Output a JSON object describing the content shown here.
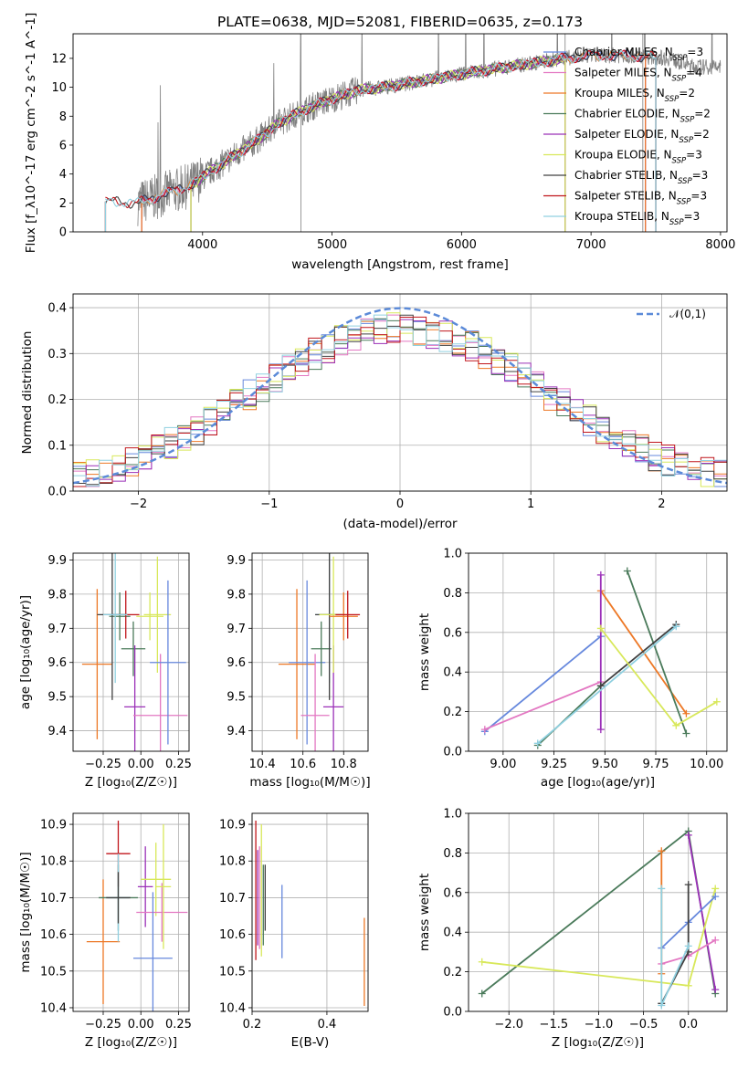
{
  "title": "PLATE=0638, MJD=52081, FIBERID=0635, z=0.173",
  "chart_data": [
    {
      "id": "spectrum",
      "type": "line",
      "xlabel": "wavelength [Angstrom, rest frame]",
      "ylabel": "Flux [f_λ10^-17 erg cm^-2 s^-1 A^-1]",
      "xlim": [
        3000,
        8050
      ],
      "ylim": [
        0,
        13.7
      ],
      "xticks": [
        4000,
        5000,
        6000,
        7000,
        8000
      ],
      "yticks": [
        0,
        2,
        4,
        6,
        8,
        10,
        12
      ],
      "grid": false,
      "legend_position": "top-right",
      "observed_color": "#808080",
      "observed_range": [
        3500,
        8000
      ],
      "model_trend": {
        "x": [
          3250,
          3500,
          3700,
          3800,
          3900,
          4000,
          4200,
          4400,
          4600,
          4800,
          5000,
          5200,
          5400,
          5600,
          5800,
          6000,
          6200,
          6500,
          6800,
          7000,
          7300,
          7600,
          7800
        ],
        "y": [
          2.1,
          2.0,
          2.6,
          2.9,
          3.2,
          3.8,
          5.0,
          6.2,
          7.6,
          8.5,
          9.2,
          9.8,
          10.0,
          10.3,
          10.6,
          10.9,
          11.2,
          11.6,
          12.0,
          12.2,
          12.2,
          12.0,
          11.4
        ]
      },
      "series": [
        {
          "name": "Chabrier MILES",
          "nssp": "3",
          "color": "#6688dd",
          "start": 3530,
          "end": 7420
        },
        {
          "name": "Salpeter MILES",
          "nssp": "4",
          "color": "#e377c2",
          "start": 3530,
          "end": 7420
        },
        {
          "name": "Kroupa MILES",
          "nssp": "2",
          "color": "#ed7826",
          "start": 3530,
          "end": 7420
        },
        {
          "name": "Chabrier ELODIE",
          "nssp": "2",
          "color": "#4a7a5a",
          "start": 3910,
          "end": 6800
        },
        {
          "name": "Salpeter ELODIE",
          "nssp": "2",
          "color": "#9b30b8",
          "start": 3910,
          "end": 6800
        },
        {
          "name": "Kroupa ELODIE",
          "nssp": "3",
          "color": "#d8e85a",
          "start": 3910,
          "end": 6800
        },
        {
          "name": "Chabrier STELIB",
          "nssp": "3",
          "color": "#404040",
          "start": 3250,
          "end": 7500
        },
        {
          "name": "Salpeter STELIB",
          "nssp": "3",
          "color": "#c0151b",
          "start": 3250,
          "end": 7500
        },
        {
          "name": "Kroupa STELIB",
          "nssp": "3",
          "color": "#90d0e0",
          "start": 3250,
          "end": 7500
        }
      ]
    },
    {
      "id": "residuals",
      "type": "line",
      "xlabel": "(data-model)/error",
      "ylabel": "Normed distribution",
      "xlim": [
        -2.5,
        2.5
      ],
      "ylim": [
        0,
        0.43
      ],
      "xticks": [
        -2,
        -1,
        0,
        1,
        2
      ],
      "yticks": [
        0.0,
        0.1,
        0.2,
        0.3,
        0.4
      ],
      "grid": true,
      "legend_position": "top-right",
      "reference": {
        "name": "𝒩(0,1)",
        "color": "#5b8ad8",
        "mean": 0,
        "sd": 1
      },
      "histogram": {
        "bins": 50,
        "range": [
          -2.5,
          2.5
        ],
        "sd": 1.12,
        "peak": 0.355
      }
    },
    {
      "id": "age_vs_Z",
      "type": "scatter",
      "xlabel": "Z [log₁₀(Z/Z☉)]",
      "ylabel": "age  [log₁₀(age/yr)]",
      "xlim": [
        -0.45,
        0.32
      ],
      "ylim": [
        9.34,
        9.92
      ],
      "xticks": [
        -0.25,
        0.0,
        0.25
      ],
      "yticks": [
        9.4,
        9.5,
        9.6,
        9.7,
        9.8,
        9.9
      ],
      "grid": true,
      "points": [
        {
          "x": -0.29,
          "xerr": 0.1,
          "y": 9.595,
          "yerr": 0.22,
          "color": "#ed7826"
        },
        {
          "x": -0.14,
          "xerr": 0.07,
          "y": 9.735,
          "yerr": 0.07,
          "color": "#4a7a5a"
        },
        {
          "x": -0.1,
          "xerr": 0.09,
          "y": 9.74,
          "yerr": 0.07,
          "color": "#c0151b"
        },
        {
          "x": -0.19,
          "xerr": 0.1,
          "y": 9.74,
          "yerr": 0.25,
          "color": "#404040"
        },
        {
          "x": -0.17,
          "xerr": 0.08,
          "y": 9.74,
          "yerr": 0.2,
          "color": "#90d0e0"
        },
        {
          "x": -0.05,
          "xerr": 0.08,
          "y": 9.64,
          "yerr": 0.08,
          "color": "#4a7a5a"
        },
        {
          "x": -0.04,
          "xerr": 0.07,
          "y": 9.47,
          "yerr": 0.18,
          "color": "#9b30b8"
        },
        {
          "x": 0.06,
          "xerr": 0.09,
          "y": 9.735,
          "yerr": 0.07,
          "color": "#d8e85a"
        },
        {
          "x": 0.11,
          "xerr": 0.09,
          "y": 9.74,
          "yerr": 0.17,
          "color": "#d8e85a"
        },
        {
          "x": 0.13,
          "xerr": 0.18,
          "y": 9.445,
          "yerr": 0.18,
          "color": "#e377c2"
        },
        {
          "x": 0.18,
          "xerr": 0.12,
          "y": 9.6,
          "yerr": 0.24,
          "color": "#6688dd"
        }
      ]
    },
    {
      "id": "age_vs_mass",
      "type": "scatter",
      "xlabel": "mass [log₁₀(M/M☉)]",
      "ylabel": "",
      "xlim": [
        10.35,
        10.92
      ],
      "ylim": [
        9.34,
        9.92
      ],
      "xticks": [
        10.4,
        10.6,
        10.8
      ],
      "yticks": [
        9.4,
        9.5,
        9.6,
        9.7,
        9.8,
        9.9
      ],
      "grid": true,
      "points": [
        {
          "x": 10.57,
          "xerr": 0.09,
          "y": 9.595,
          "yerr": 0.22,
          "color": "#ed7826"
        },
        {
          "x": 10.62,
          "xerr": 0.09,
          "y": 9.6,
          "yerr": 0.24,
          "color": "#6688dd"
        },
        {
          "x": 10.66,
          "xerr": 0.07,
          "y": 9.445,
          "yerr": 0.18,
          "color": "#e377c2"
        },
        {
          "x": 10.69,
          "xerr": 0.05,
          "y": 9.64,
          "yerr": 0.08,
          "color": "#4a7a5a"
        },
        {
          "x": 10.73,
          "xerr": 0.07,
          "y": 9.74,
          "yerr": 0.2,
          "color": "#90d0e0"
        },
        {
          "x": 10.73,
          "xerr": 0.07,
          "y": 9.74,
          "yerr": 0.25,
          "color": "#404040"
        },
        {
          "x": 10.75,
          "xerr": 0.05,
          "y": 9.47,
          "yerr": 0.18,
          "color": "#9b30b8"
        },
        {
          "x": 10.75,
          "xerr": 0.07,
          "y": 9.74,
          "yerr": 0.17,
          "color": "#d8e85a"
        },
        {
          "x": 10.8,
          "xerr": 0.07,
          "y": 9.735,
          "yerr": 0.07,
          "color": "#ed7826"
        },
        {
          "x": 10.82,
          "xerr": 0.06,
          "y": 9.74,
          "yerr": 0.07,
          "color": "#c0151b"
        }
      ]
    },
    {
      "id": "massweight_vs_age",
      "type": "line",
      "xlabel": "age  [log₁₀(age/yr)]",
      "ylabel": "mass weight",
      "xlim": [
        8.83,
        10.1
      ],
      "ylim": [
        0,
        1.0
      ],
      "xticks": [
        9.0,
        9.25,
        9.5,
        9.75,
        10.0
      ],
      "yticks": [
        0.0,
        0.2,
        0.4,
        0.6,
        0.8,
        1.0
      ],
      "grid": true,
      "lines": [
        {
          "color": "#6688dd",
          "x": [
            8.91,
            9.48
          ],
          "y": [
            0.1,
            0.58
          ]
        },
        {
          "color": "#e377c2",
          "x": [
            8.91,
            9.48
          ],
          "y": [
            0.11,
            0.35
          ]
        },
        {
          "color": "#ed7826",
          "x": [
            9.48,
            9.9
          ],
          "y": [
            0.81,
            0.19
          ]
        },
        {
          "color": "#9b30b8",
          "x": [
            9.48,
            9.48
          ],
          "y": [
            0.89,
            0.11
          ]
        },
        {
          "color": "#4a7a5a",
          "x": [
            9.61,
            9.9
          ],
          "y": [
            0.91,
            0.09
          ]
        },
        {
          "color": "#4a7a5a",
          "x": [
            9.17,
            9.48
          ],
          "y": [
            0.03,
            0.33
          ]
        },
        {
          "color": "#404040",
          "x": [
            9.48,
            9.85
          ],
          "y": [
            0.33,
            0.64
          ]
        },
        {
          "color": "#90d0e0",
          "x": [
            9.17,
            9.85
          ],
          "y": [
            0.04,
            0.63
          ]
        },
        {
          "color": "#d8e85a",
          "x": [
            9.48,
            9.85,
            10.05
          ],
          "y": [
            0.62,
            0.13,
            0.25
          ]
        }
      ]
    },
    {
      "id": "mass_vs_Z",
      "type": "scatter",
      "xlabel": "Z [log₁₀(Z/Z☉)]",
      "ylabel": "mass [log₁₀(M/M☉)]",
      "xlim": [
        -0.45,
        0.32
      ],
      "ylim": [
        10.39,
        10.93
      ],
      "xticks": [
        -0.25,
        0.0,
        0.25
      ],
      "yticks": [
        10.4,
        10.5,
        10.6,
        10.7,
        10.8,
        10.9
      ],
      "grid": true,
      "points": [
        {
          "x": -0.25,
          "xerr": 0.11,
          "y": 10.58,
          "yerr": 0.17,
          "color": "#ed7826"
        },
        {
          "x": -0.15,
          "xerr": 0.08,
          "y": 10.82,
          "yerr": 0.09,
          "color": "#c0151b"
        },
        {
          "x": -0.15,
          "xerr": 0.13,
          "y": 10.7,
          "yerr": 0.09,
          "color": "#4a7a5a"
        },
        {
          "x": -0.15,
          "xerr": 0.07,
          "y": 10.7,
          "yerr": 0.12,
          "color": "#90d0e0"
        },
        {
          "x": -0.15,
          "xerr": 0.08,
          "y": 10.7,
          "yerr": 0.07,
          "color": "#404040"
        },
        {
          "x": 0.03,
          "xerr": 0.05,
          "y": 10.73,
          "yerr": 0.11,
          "color": "#9b30b8"
        },
        {
          "x": 0.1,
          "xerr": 0.1,
          "y": 10.75,
          "yerr": 0.1,
          "color": "#d8e85a"
        },
        {
          "x": 0.14,
          "xerr": 0.17,
          "y": 10.66,
          "yerr": 0.08,
          "color": "#e377c2"
        },
        {
          "x": 0.15,
          "xerr": 0.05,
          "y": 10.73,
          "yerr": 0.17,
          "color": "#d8e85a"
        },
        {
          "x": 0.08,
          "xerr": 0.13,
          "y": 10.535,
          "yerr": 0.18,
          "color": "#6688dd"
        }
      ]
    },
    {
      "id": "mass_vs_ebv",
      "type": "scatter",
      "xlabel": "E(B-V)",
      "ylabel": "",
      "xlim": [
        0.2,
        0.51
      ],
      "ylim": [
        10.39,
        10.93
      ],
      "xticks": [
        0.2,
        0.4
      ],
      "yticks": [
        10.4,
        10.5,
        10.6,
        10.7,
        10.8,
        10.9
      ],
      "grid": true,
      "points": [
        {
          "x": 0.21,
          "xerr": 0,
          "y": 10.72,
          "yerr": 0.19,
          "color": "#c0151b"
        },
        {
          "x": 0.215,
          "xerr": 0,
          "y": 10.7,
          "yerr": 0.13,
          "color": "#9b30b8"
        },
        {
          "x": 0.22,
          "xerr": 0,
          "y": 10.7,
          "yerr": 0.14,
          "color": "#e377c2"
        },
        {
          "x": 0.225,
          "xerr": 0,
          "y": 10.72,
          "yerr": 0.18,
          "color": "#d8e85a"
        },
        {
          "x": 0.23,
          "xerr": 0,
          "y": 10.68,
          "yerr": 0.11,
          "color": "#4a7a5a"
        },
        {
          "x": 0.235,
          "xerr": 0,
          "y": 10.7,
          "yerr": 0.09,
          "color": "#404040"
        },
        {
          "x": 0.28,
          "xerr": 0,
          "y": 10.635,
          "yerr": 0.1,
          "color": "#6688dd"
        },
        {
          "x": 0.5,
          "xerr": 0,
          "y": 10.525,
          "yerr": 0.12,
          "color": "#ed7826"
        }
      ]
    },
    {
      "id": "massweight_vs_Z",
      "type": "line",
      "xlabel": "Z [log₁₀(Z/Z☉)]",
      "ylabel": "mass weight",
      "xlim": [
        -2.45,
        0.43
      ],
      "ylim": [
        0,
        1.0
      ],
      "xticks": [
        -2.0,
        -1.5,
        -1.0,
        -0.5,
        0.0
      ],
      "yticks": [
        0.0,
        0.2,
        0.4,
        0.6,
        0.8,
        1.0
      ],
      "grid": true,
      "lines": [
        {
          "color": "#4a7a5a",
          "x": [
            -2.3,
            0.0,
            0.3
          ],
          "y": [
            0.09,
            0.91,
            0.09
          ]
        },
        {
          "color": "#9b30b8",
          "x": [
            0.0,
            0.3
          ],
          "y": [
            0.89,
            0.11
          ]
        },
        {
          "color": "#d8e85a",
          "x": [
            -2.3,
            0.0,
            0.3
          ],
          "y": [
            0.25,
            0.13,
            0.62
          ]
        },
        {
          "color": "#6688dd",
          "x": [
            -0.3,
            0.0,
            0.3
          ],
          "y": [
            0.32,
            0.45,
            0.58
          ]
        },
        {
          "color": "#e377c2",
          "x": [
            -0.3,
            0.0,
            0.3
          ],
          "y": [
            0.24,
            0.28,
            0.36
          ]
        },
        {
          "color": "#ed7826",
          "x": [
            -0.3,
            -0.3
          ],
          "y": [
            0.81,
            0.19
          ]
        },
        {
          "color": "#404040",
          "x": [
            -0.3,
            0.0,
            0.0
          ],
          "y": [
            0.04,
            0.3,
            0.64
          ]
        },
        {
          "color": "#90d0e0",
          "x": [
            -0.3,
            -0.3,
            0.0
          ],
          "y": [
            0.62,
            0.03,
            0.33
          ]
        }
      ]
    }
  ]
}
